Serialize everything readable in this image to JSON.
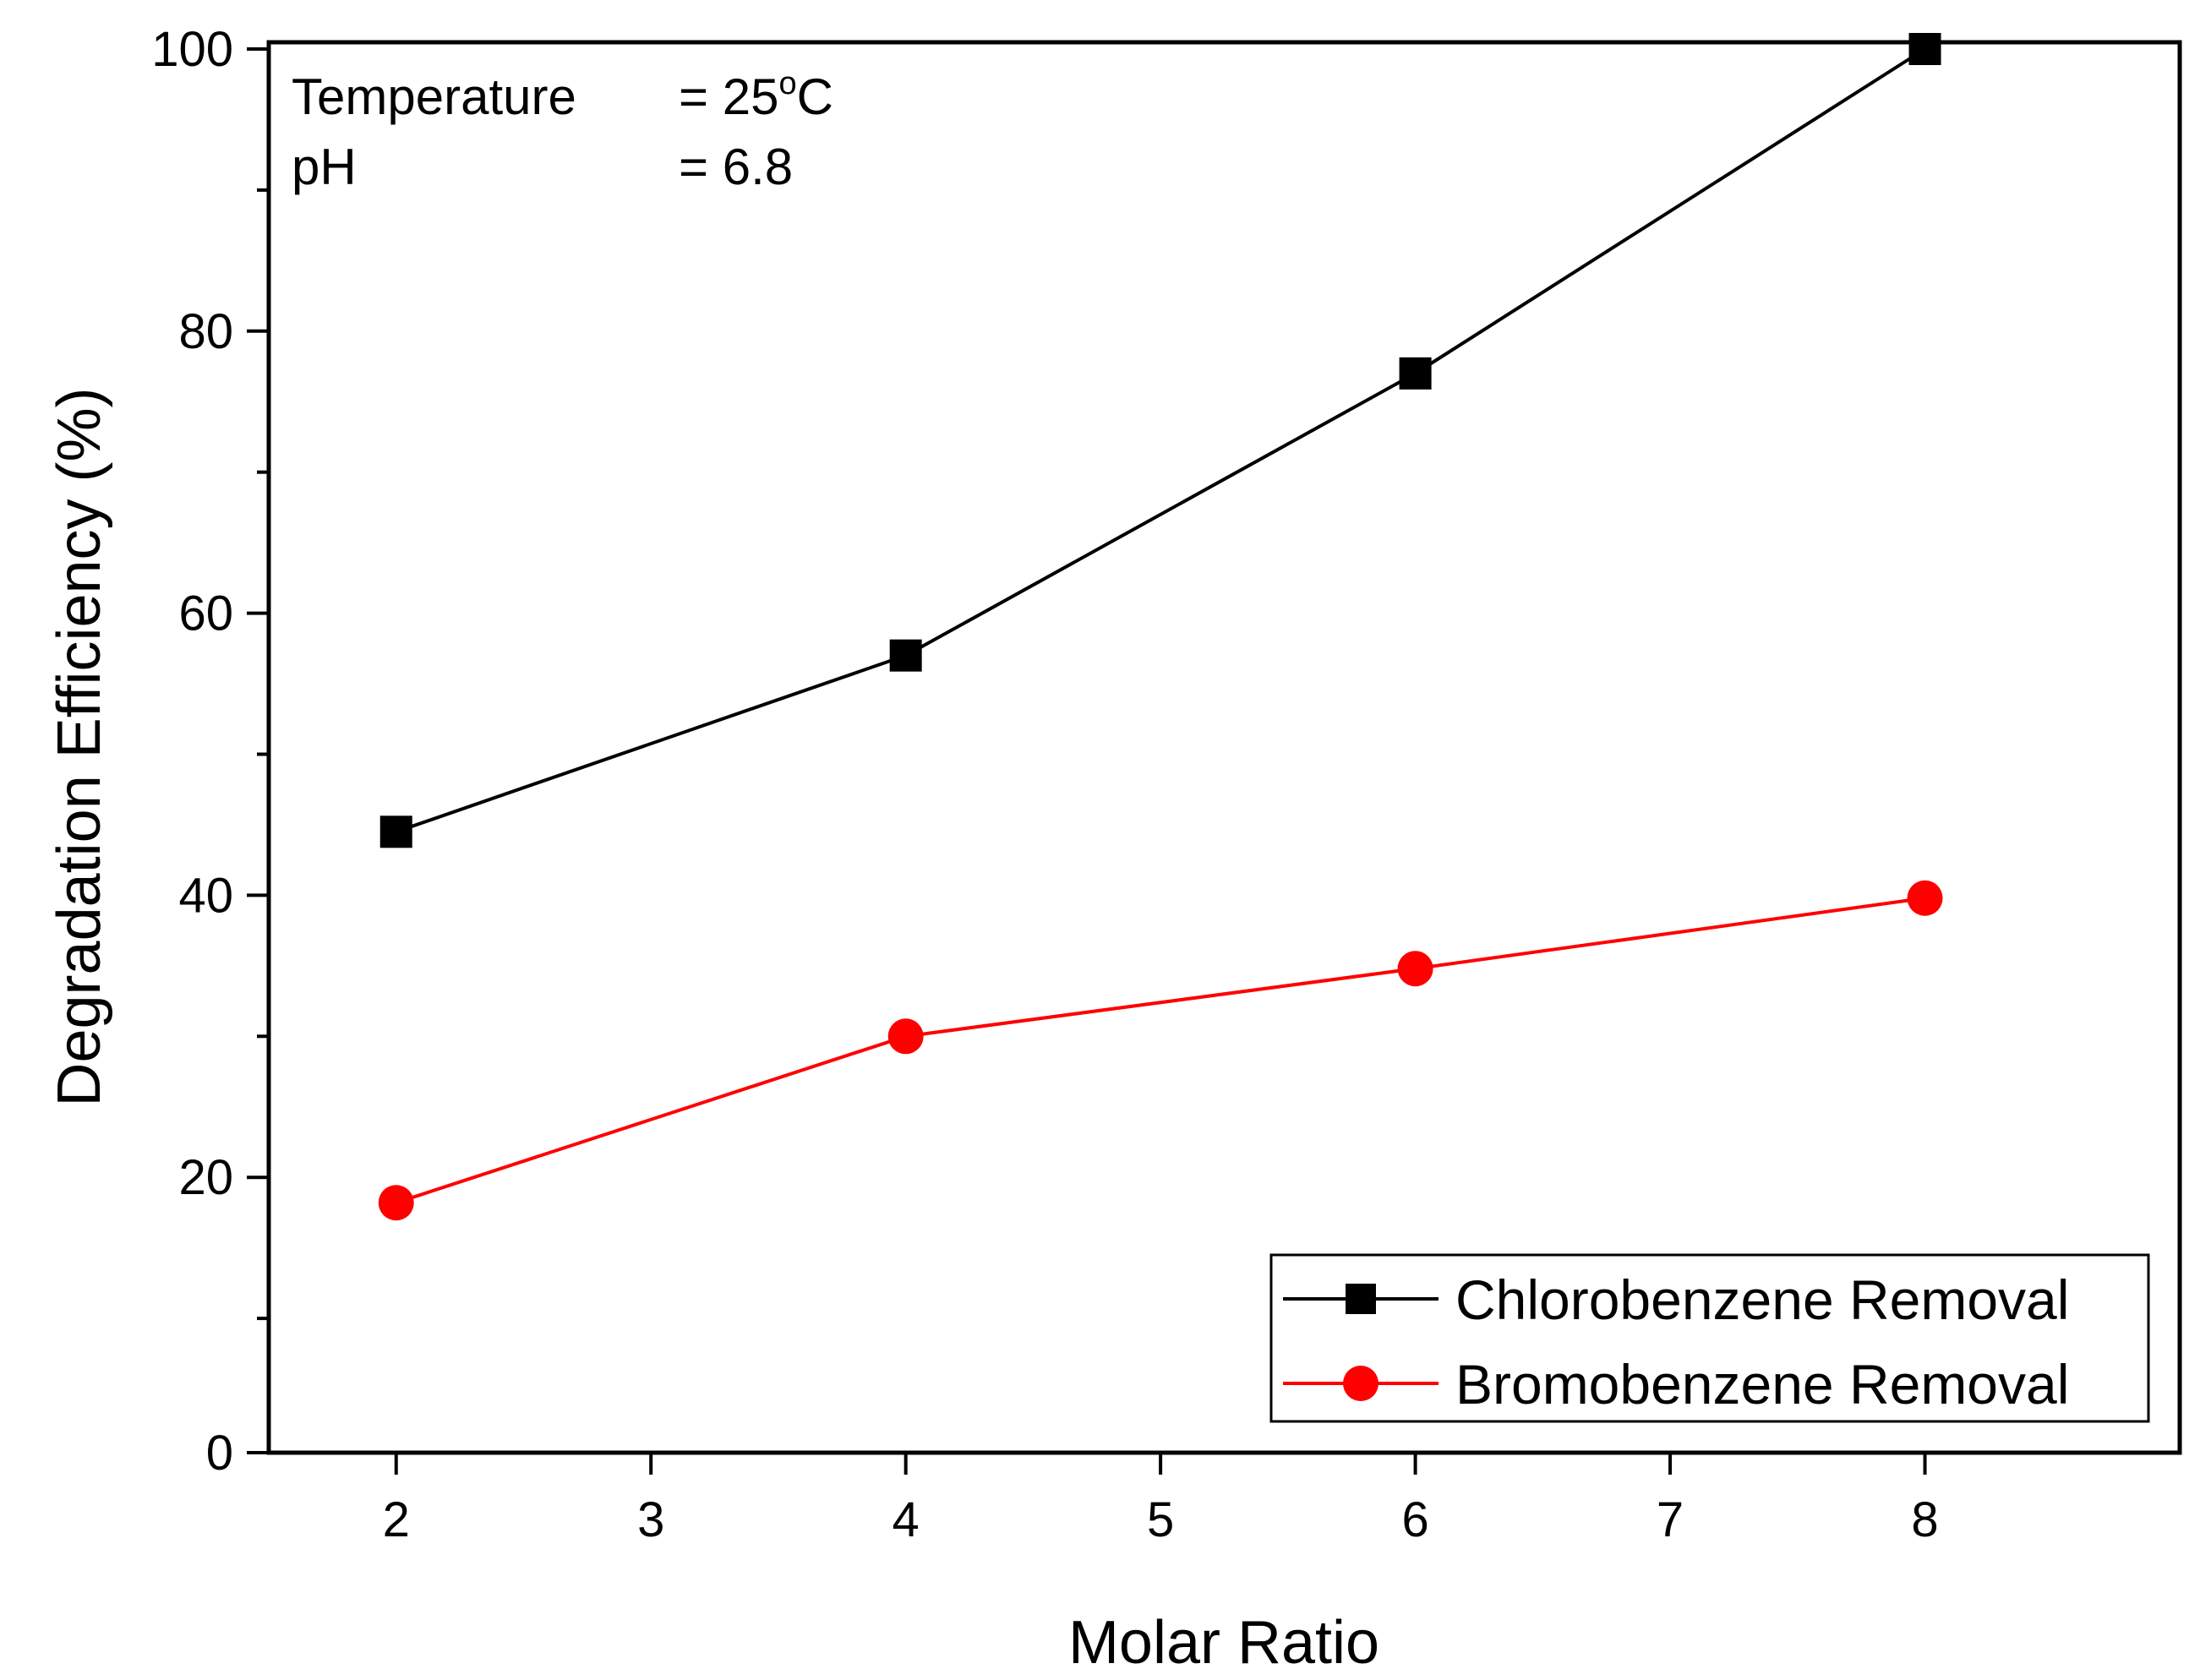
{
  "chart_data": {
    "type": "line",
    "title": "",
    "xlabel": "Molar Ratio",
    "ylabel": "Degradation Efficiency (%)",
    "xlim": [
      1.5,
      9.0
    ],
    "ylim": [
      0,
      100
    ],
    "x_ticks": [
      2,
      3,
      4,
      5,
      6,
      7,
      8
    ],
    "x_tick_labels": [
      "2",
      "3",
      "4",
      "5",
      "6",
      "7",
      "8"
    ],
    "y_major_ticks": [
      0,
      20,
      40,
      60,
      80,
      100
    ],
    "y_tick_labels": [
      "0",
      "20",
      "40",
      "60",
      "80",
      "100"
    ],
    "y_minor_ticks": [
      10,
      30,
      50,
      70,
      90
    ],
    "grid": false,
    "legend_position": "bottom-right",
    "annotations": [
      {
        "label": "Temperature",
        "value": "= 25",
        "superscript": "o",
        "unit": "C"
      },
      {
        "label": "pH",
        "value": "= 6.8",
        "superscript": "",
        "unit": ""
      }
    ],
    "series": [
      {
        "name": "Chlorobenzene Removal",
        "color": "#000000",
        "marker": "square",
        "x": [
          2,
          4,
          6,
          8
        ],
        "values": [
          44.5,
          57.0,
          77.0,
          100.0
        ]
      },
      {
        "name": "Bromobenzene Removal",
        "color": "#ff0000",
        "marker": "circle",
        "x": [
          2,
          4,
          6,
          8
        ],
        "values": [
          18.2,
          30.0,
          34.8,
          39.8
        ]
      }
    ]
  }
}
